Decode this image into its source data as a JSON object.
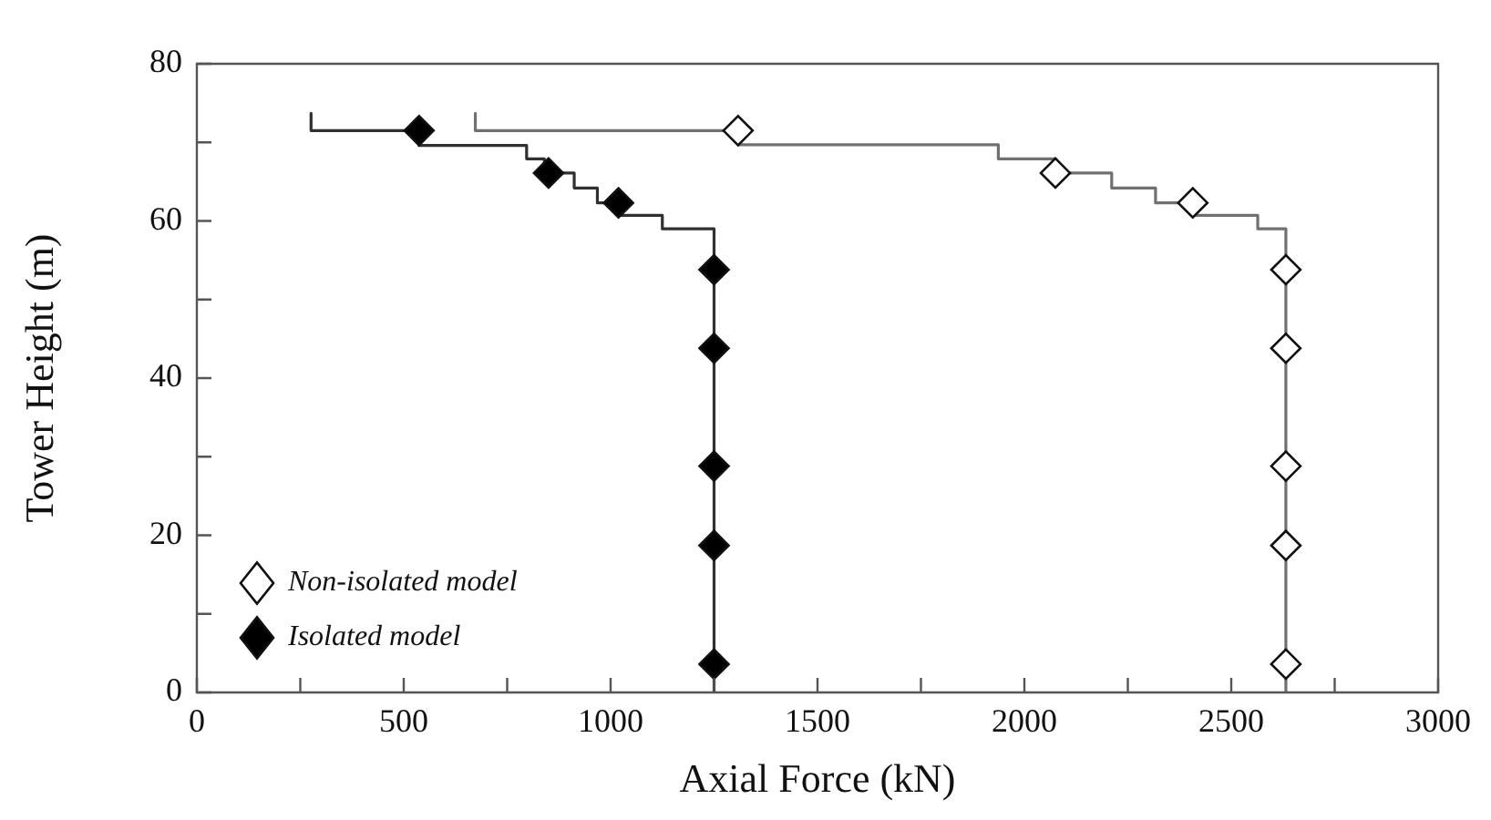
{
  "chart_data": {
    "type": "line",
    "xlabel": "Axial Force (kN)",
    "ylabel": "Tower Height (m)",
    "xlim": [
      0,
      3000
    ],
    "xticks": [
      0,
      {
        "value": 250,
        "label": null
      },
      500,
      {
        "value": 750,
        "label": null
      },
      1000,
      {
        "value": 1250,
        "label": null
      },
      1500,
      {
        "value": 1750,
        "label": null
      },
      2000,
      {
        "value": 2250,
        "label": null
      },
      2500,
      {
        "value": 2750,
        "label": null
      },
      3000
    ],
    "ylim": [
      0,
      80
    ],
    "yticks": [
      0,
      {
        "value": 10,
        "label": null
      },
      20,
      {
        "value": 30,
        "label": null
      },
      40,
      {
        "value": 50,
        "label": null
      },
      60,
      {
        "value": 70,
        "label": null
      },
      80
    ],
    "grid": false,
    "legend": "bottom left",
    "series": [
      {
        "type": "line",
        "marker": "none",
        "color": "#707070",
        "x": [
          673,
          673,
          1308,
          1308,
          1937,
          1937,
          2075,
          2075,
          2211,
          2211,
          2317,
          2317,
          2407,
          2407,
          2564,
          2564,
          2632,
          2632
        ],
        "values": [
          73.7,
          71.5,
          71.5,
          69.7,
          69.7,
          67.9,
          67.9,
          66.1,
          66.1,
          64.2,
          64.2,
          62.3,
          62.3,
          60.7,
          60.7,
          59,
          59,
          0
        ]
      },
      {
        "type": "line",
        "marker": "none",
        "color": "#303030",
        "x": [
          276,
          276,
          537,
          537,
          797,
          797,
          840,
          840,
          912,
          912,
          968,
          968,
          1019,
          1019,
          1125,
          1125,
          1250,
          1250
        ],
        "values": [
          73.7,
          71.5,
          71.5,
          69.6,
          69.6,
          67.9,
          67.9,
          66.1,
          66.1,
          64.2,
          64.2,
          62.3,
          62.3,
          60.7,
          60.7,
          59,
          59,
          0
        ]
      },
      {
        "type": "scatter",
        "marker": "diamond",
        "name": "Non-isolated model",
        "color": "#ffffff",
        "x": [
          1308,
          2075,
          2407,
          2632,
          2632,
          2632,
          2632,
          2632
        ],
        "values": [
          71.5,
          66.1,
          62.3,
          53.8,
          43.8,
          28.8,
          18.7,
          3.6
        ]
      },
      {
        "type": "scatter",
        "marker": "diamond",
        "name": "Isolated model",
        "color": "#000000",
        "x": [
          537,
          850,
          1019,
          1250,
          1250,
          1250,
          1250,
          1250
        ],
        "values": [
          71.5,
          66.1,
          62.3,
          53.8,
          43.8,
          28.8,
          18.7,
          3.6
        ]
      }
    ]
  }
}
